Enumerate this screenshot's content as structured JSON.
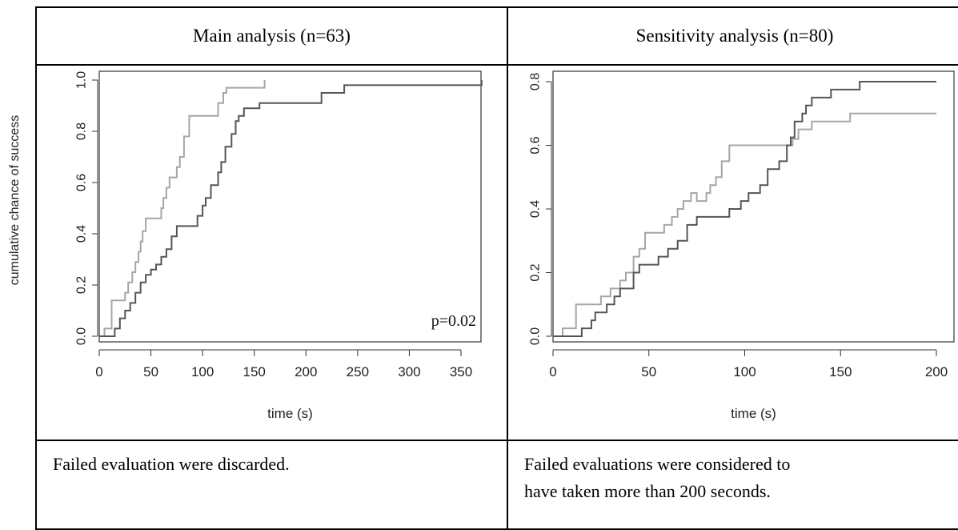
{
  "figure": {
    "ylabel": "cumulative chance of success",
    "panels": [
      {
        "title": "Main analysis (n=63)",
        "caption_lines": [
          "Failed evaluation were discarded."
        ]
      },
      {
        "title": "Sensitivity analysis (n=80)",
        "caption_lines": [
          "Failed evaluations were considered to",
          "have taken more than 200 seconds."
        ]
      }
    ]
  },
  "chart_data": [
    {
      "type": "line",
      "title": "Main analysis (n=63)",
      "xlabel": "time (s)",
      "ylabel": "cumulative chance of success",
      "xlim": [
        0,
        375
      ],
      "ylim": [
        0,
        1.0
      ],
      "xticks": [
        0,
        50,
        100,
        150,
        200,
        250,
        300,
        350
      ],
      "yticks": [
        "0.0",
        "0.2",
        "0.4",
        "0.6",
        "0.8",
        "1.0"
      ],
      "annotation": "p=0.02",
      "grid": false,
      "colors": [
        "#a6a6a6",
        "#555555"
      ],
      "series": [
        {
          "step": true,
          "x": [
            0,
            5,
            12,
            25,
            28,
            32,
            35,
            38,
            40,
            42,
            45,
            50,
            60,
            62,
            65,
            68,
            72,
            75,
            78,
            82,
            87,
            90,
            115,
            120,
            123,
            128,
            160
          ],
          "y": [
            0,
            0.03,
            0.14,
            0.17,
            0.21,
            0.25,
            0.29,
            0.33,
            0.37,
            0.41,
            0.46,
            0.46,
            0.5,
            0.54,
            0.58,
            0.62,
            0.62,
            0.66,
            0.7,
            0.78,
            0.86,
            0.86,
            0.91,
            0.95,
            0.97,
            0.97,
            1.0
          ]
        },
        {
          "step": true,
          "x": [
            0,
            15,
            20,
            25,
            30,
            35,
            40,
            45,
            50,
            55,
            60,
            65,
            70,
            75,
            80,
            88,
            95,
            100,
            103,
            108,
            115,
            118,
            122,
            128,
            132,
            135,
            140,
            145,
            155,
            160,
            215,
            237,
            370
          ],
          "y": [
            0,
            0.03,
            0.07,
            0.1,
            0.13,
            0.17,
            0.21,
            0.24,
            0.26,
            0.28,
            0.31,
            0.34,
            0.39,
            0.43,
            0.43,
            0.43,
            0.47,
            0.51,
            0.54,
            0.59,
            0.64,
            0.68,
            0.74,
            0.79,
            0.84,
            0.86,
            0.89,
            0.89,
            0.91,
            0.91,
            0.95,
            0.98,
            1.0
          ]
        }
      ]
    },
    {
      "type": "line",
      "title": "Sensitivity analysis (n=80)",
      "xlabel": "time (s)",
      "ylabel": "cumulative chance of success",
      "xlim": [
        0,
        200
      ],
      "ylim": [
        0,
        0.8
      ],
      "xticks": [
        0,
        50,
        100,
        150,
        200
      ],
      "yticks": [
        "0.0",
        "0.2",
        "0.4",
        "0.6",
        "0.8"
      ],
      "grid": false,
      "colors": [
        "#a6a6a6",
        "#555555"
      ],
      "series": [
        {
          "step": true,
          "x": [
            0,
            5,
            12,
            25,
            30,
            35,
            38,
            42,
            45,
            48,
            58,
            62,
            65,
            68,
            72,
            75,
            80,
            82,
            85,
            88,
            92,
            95,
            125,
            128,
            130,
            135,
            140,
            155,
            200
          ],
          "y": [
            0,
            0.025,
            0.1,
            0.125,
            0.15,
            0.175,
            0.2,
            0.25,
            0.275,
            0.325,
            0.35,
            0.375,
            0.4,
            0.425,
            0.45,
            0.425,
            0.45,
            0.475,
            0.5,
            0.55,
            0.6,
            0.6,
            0.62,
            0.65,
            0.65,
            0.675,
            0.675,
            0.7,
            0.7
          ]
        },
        {
          "step": true,
          "x": [
            0,
            15,
            20,
            22,
            28,
            32,
            35,
            42,
            45,
            50,
            55,
            60,
            65,
            70,
            75,
            80,
            90,
            92,
            95,
            98,
            102,
            108,
            112,
            118,
            122,
            124,
            126,
            130,
            132,
            135,
            140,
            145,
            152,
            160,
            200
          ],
          "y": [
            0,
            0.025,
            0.05,
            0.075,
            0.1,
            0.125,
            0.15,
            0.2,
            0.225,
            0.225,
            0.25,
            0.275,
            0.3,
            0.35,
            0.375,
            0.375,
            0.375,
            0.4,
            0.4,
            0.425,
            0.45,
            0.475,
            0.525,
            0.55,
            0.6,
            0.625,
            0.675,
            0.7,
            0.725,
            0.75,
            0.75,
            0.775,
            0.775,
            0.8,
            0.8
          ]
        }
      ]
    }
  ]
}
